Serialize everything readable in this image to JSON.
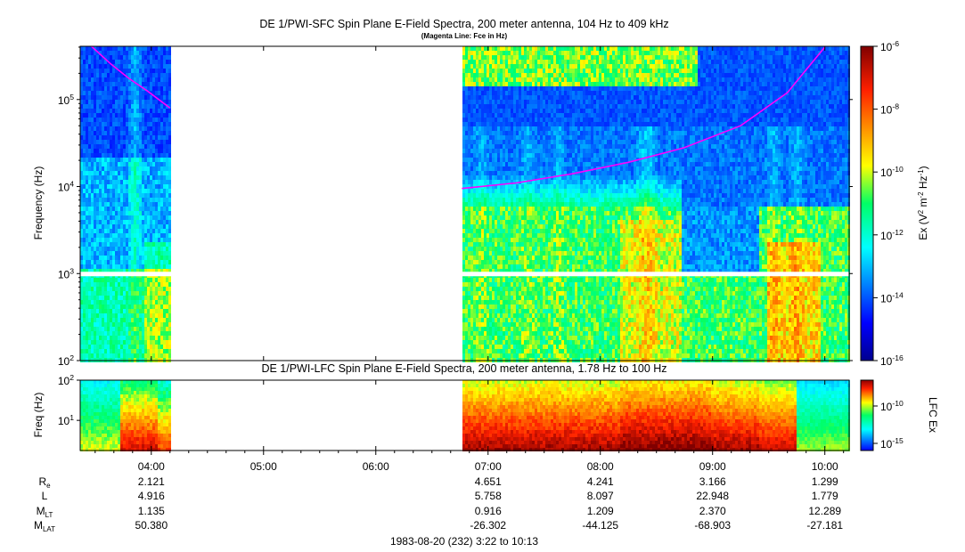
{
  "chart_data": [
    {
      "type": "heatmap",
      "title": "DE 1/PWI-SFC  Spin Plane E-Field Spectra, 200 meter antenna, 104 Hz to 409 kHz",
      "subtitle": "(Magenta Line: Fce in Hz)",
      "ylabel": "Frequency (Hz)",
      "yscale": "log",
      "ylim": [
        100,
        409000
      ],
      "y_ticks": [
        "10^2",
        "10^3",
        "10^4",
        "10^5"
      ],
      "colorbar": {
        "label": "Ex (V^2 m^-2 Hz^-1)",
        "scale": "log",
        "range": [
          1e-16,
          1e-06
        ],
        "ticks": [
          "10^-16",
          "10^-14",
          "10^-12",
          "10^-10",
          "10^-8",
          "10^-6"
        ]
      },
      "data_gap": [
        "04:12",
        "06:46"
      ],
      "series": [
        {
          "name": "Fce",
          "color": "#ff00ff",
          "points": [
            {
              "x": "03:28",
              "y": 410000
            },
            {
              "x": "03:38",
              "y": 260000
            },
            {
              "x": "03:48",
              "y": 175000
            },
            {
              "x": "03:58",
              "y": 125000
            },
            {
              "x": "04:10",
              "y": 80000
            },
            {
              "x": "06:46",
              "y": 9500
            },
            {
              "x": "07:15",
              "y": 11000
            },
            {
              "x": "07:45",
              "y": 14000
            },
            {
              "x": "08:15",
              "y": 19000
            },
            {
              "x": "08:45",
              "y": 28000
            },
            {
              "x": "09:15",
              "y": 50000
            },
            {
              "x": "09:40",
              "y": 120000
            },
            {
              "x": "10:00",
              "y": 400000
            }
          ]
        }
      ]
    },
    {
      "type": "heatmap",
      "title": "DE 1/PWI-LFC  Spin Plane E-Field Spectra, 200 meter antenna, 1.78 Hz to 100 Hz",
      "ylabel": "Freq (Hz)",
      "yscale": "log",
      "ylim": [
        1.78,
        100
      ],
      "y_ticks": [
        "10^1",
        "10^2"
      ],
      "colorbar": {
        "label": "LFC Ex",
        "scale": "log",
        "ticks": [
          "10^-15",
          "10^-10"
        ]
      },
      "data_gap": [
        "04:12",
        "06:46"
      ]
    }
  ],
  "x_axis": {
    "ticks": [
      "04:00",
      "05:00",
      "06:00",
      "07:00",
      "08:00",
      "09:00",
      "10:00"
    ],
    "range": [
      "03:22",
      "10:13"
    ]
  },
  "ephemeris": {
    "labels": [
      {
        "base": "R",
        "sub": "e"
      },
      {
        "base": "L",
        "sub": ""
      },
      {
        "base": "M",
        "sub": "LT"
      },
      {
        "base": "M",
        "sub": "LAT"
      }
    ],
    "columns": [
      {
        "time": "04:00",
        "values": [
          "2.121",
          "4.916",
          "1.135",
          "50.380"
        ]
      },
      {
        "time": "05:00",
        "values": [
          "",
          "",
          "",
          ""
        ]
      },
      {
        "time": "06:00",
        "values": [
          "",
          "",
          "",
          ""
        ]
      },
      {
        "time": "07:00",
        "values": [
          "4.651",
          "5.758",
          "0.916",
          "-26.302"
        ]
      },
      {
        "time": "08:00",
        "values": [
          "4.241",
          "8.097",
          "1.209",
          "-44.125"
        ]
      },
      {
        "time": "09:00",
        "values": [
          "3.166",
          "22.948",
          "2.370",
          "-68.903"
        ]
      },
      {
        "time": "10:00",
        "values": [
          "1.299",
          "1.779",
          "12.289",
          "-27.181"
        ]
      }
    ]
  },
  "footer": "1983-08-20 (232) 3:22 to 10:13"
}
